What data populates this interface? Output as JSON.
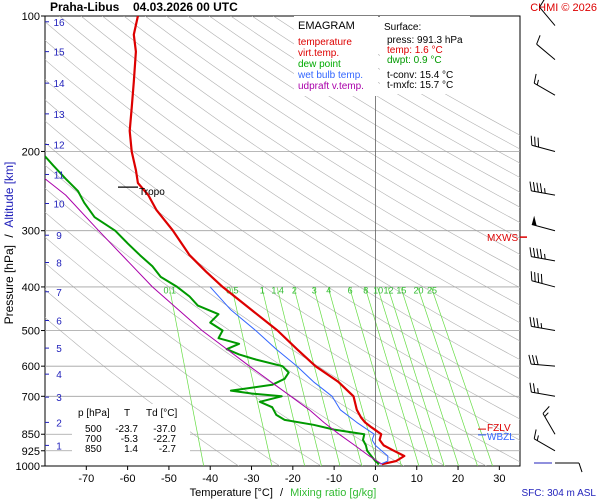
{
  "header": {
    "station": "Praha-Libus",
    "datetime": "04.03.2026 00 UTC",
    "credit": "CHMI © 2026"
  },
  "legend": {
    "title": "EMAGRAM",
    "items": [
      {
        "label": "temperature",
        "color": "#dd0000"
      },
      {
        "label": "virt.temp.",
        "color": "#dd0000"
      },
      {
        "label": "dew point",
        "color": "#00aa00"
      },
      {
        "label": "wet bulb temp.",
        "color": "#3366ff"
      },
      {
        "label": "udpraft v.temp.",
        "color": "#aa00aa"
      }
    ]
  },
  "surface_box": {
    "title": "Surface:",
    "press": "press: 991.3 hPa",
    "temp": "temp: 1.6 °C",
    "dwpt": "dwpt: 0.9 °C",
    "tconv": "t-conv: 15.4 °C",
    "tmxfc": "t-mxfc: 15.7 °C"
  },
  "table": {
    "header": [
      "p [hPa]",
      "T",
      "Td [°C]"
    ],
    "rows": [
      [
        "500",
        "-23.7",
        "-37.0"
      ],
      [
        "700",
        "-5.3",
        "-22.7"
      ],
      [
        "850",
        "1.4",
        "-2.7"
      ]
    ]
  },
  "labels": {
    "tropo": "Tropo",
    "mxws": "MXWS",
    "fzl": "FZLV",
    "wbzl": "WBZL",
    "sfc": "SFC: 304 m ASL"
  },
  "axes": {
    "ylabel_left": "Pressure [hPa]",
    "ylabel_sep": "/",
    "ylabel_right": "Altitude [km]",
    "xlabel_left": "Temperature [°C]",
    "xlabel_sep": "/",
    "xlabel_right": "Mixing ratio [g/kg]"
  },
  "colors": {
    "temperature": "#dd0000",
    "dewpoint": "#009900",
    "wetbulb": "#3366ff",
    "parcel": "#aa00aa",
    "mixing": "#66dd44",
    "adiabat": "#b0b0b0",
    "isobar": "#a0a0a0",
    "wind": "#000000",
    "axis_label_blue": "#2222bb"
  },
  "chart_data": {
    "type": "line",
    "xlim": [
      -80,
      35
    ],
    "ylim_hpa": [
      1000,
      100
    ],
    "log_pressure": true,
    "x_ticks": [
      -70,
      -60,
      -50,
      -40,
      -30,
      -20,
      -10,
      0,
      10,
      20,
      30
    ],
    "p_ticks": [
      100,
      200,
      300,
      400,
      500,
      600,
      700,
      850,
      925,
      1000
    ],
    "alt_ticks": [
      {
        "label": "1",
        "p": 900
      },
      {
        "label": "2",
        "p": 800
      },
      {
        "label": "3",
        "p": 703
      },
      {
        "label": "4",
        "p": 625
      },
      {
        "label": "5",
        "p": 547
      },
      {
        "label": "6",
        "p": 475
      },
      {
        "label": "7",
        "p": 410
      },
      {
        "label": "8",
        "p": 353
      },
      {
        "label": "9",
        "p": 307
      },
      {
        "label": "10",
        "p": 261
      },
      {
        "label": "11",
        "p": 225
      },
      {
        "label": "12",
        "p": 193
      },
      {
        "label": "13",
        "p": 165
      },
      {
        "label": "14",
        "p": 141
      },
      {
        "label": "15",
        "p": 120
      },
      {
        "label": "16",
        "p": 103
      }
    ],
    "mixing_ratio_labels": [
      "0.1",
      "0.5",
      "1",
      "1.4",
      "2",
      "3",
      "4",
      "6",
      "8",
      "10",
      "12",
      "15",
      "20",
      "25"
    ],
    "mixing_ratio_values": [
      0.1,
      0.5,
      1,
      1.4,
      2,
      3,
      4,
      6,
      8,
      10,
      12,
      15,
      20,
      25
    ],
    "mixing_label_p": 405,
    "series": [
      {
        "key": "temperature",
        "points": [
          [
            991,
            1.6
          ],
          [
            975,
            5.0
          ],
          [
            950,
            7.0
          ],
          [
            925,
            4.5
          ],
          [
            900,
            2.0
          ],
          [
            875,
            1.0
          ],
          [
            850,
            1.4
          ],
          [
            820,
            -1.0
          ],
          [
            800,
            -2.5
          ],
          [
            780,
            -3.5
          ],
          [
            750,
            -4.5
          ],
          [
            700,
            -5.3
          ],
          [
            650,
            -9.0
          ],
          [
            600,
            -14.5
          ],
          [
            550,
            -19.0
          ],
          [
            500,
            -23.7
          ],
          [
            450,
            -30.0
          ],
          [
            400,
            -37.0
          ],
          [
            370,
            -41.0
          ],
          [
            340,
            -45.0
          ],
          [
            300,
            -49.0
          ],
          [
            270,
            -53.0
          ],
          [
            250,
            -55.0
          ],
          [
            235,
            -57.5
          ],
          [
            220,
            -58.0
          ],
          [
            200,
            -59.0
          ],
          [
            180,
            -59.5
          ],
          [
            160,
            -59.0
          ],
          [
            140,
            -58.5
          ],
          [
            120,
            -58.0
          ],
          [
            110,
            -58.5
          ],
          [
            100,
            -57.5
          ]
        ]
      },
      {
        "key": "dewpoint",
        "points": [
          [
            991,
            0.9
          ],
          [
            975,
            0.0
          ],
          [
            950,
            -1.0
          ],
          [
            925,
            -2.0
          ],
          [
            900,
            -2.3
          ],
          [
            875,
            -3.0
          ],
          [
            850,
            -2.7
          ],
          [
            830,
            -10.0
          ],
          [
            810,
            -15.0
          ],
          [
            790,
            -22.0
          ],
          [
            770,
            -24.0
          ],
          [
            740,
            -25.0
          ],
          [
            720,
            -28.0
          ],
          [
            700,
            -22.7
          ],
          [
            690,
            -30.0
          ],
          [
            680,
            -35.0
          ],
          [
            660,
            -25.0
          ],
          [
            640,
            -22.0
          ],
          [
            620,
            -21.0
          ],
          [
            600,
            -22.5
          ],
          [
            580,
            -29.0
          ],
          [
            565,
            -33.0
          ],
          [
            550,
            -36.0
          ],
          [
            535,
            -33.0
          ],
          [
            520,
            -38.0
          ],
          [
            500,
            -37.0
          ],
          [
            480,
            -40.0
          ],
          [
            460,
            -38.0
          ],
          [
            440,
            -43.0
          ],
          [
            420,
            -45.0
          ],
          [
            400,
            -48.0
          ],
          [
            380,
            -52.0
          ],
          [
            360,
            -54.0
          ],
          [
            340,
            -57.0
          ],
          [
            320,
            -60.0
          ],
          [
            300,
            -63.0
          ],
          [
            280,
            -68.0
          ],
          [
            260,
            -70.5
          ],
          [
            245,
            -72.0
          ],
          [
            230,
            -75.0
          ],
          [
            215,
            -78.0
          ],
          [
            205,
            -80.0
          ]
        ]
      },
      {
        "key": "wetbulb",
        "points": [
          [
            991,
            1.2
          ],
          [
            975,
            3.0
          ],
          [
            950,
            3.0
          ],
          [
            925,
            1.5
          ],
          [
            900,
            0.0
          ],
          [
            875,
            -0.8
          ],
          [
            850,
            -0.3
          ],
          [
            800,
            -4.5
          ],
          [
            750,
            -8.5
          ],
          [
            700,
            -10.5
          ],
          [
            650,
            -15.0
          ],
          [
            600,
            -19.0
          ],
          [
            550,
            -24.0
          ],
          [
            500,
            -29.0
          ],
          [
            450,
            -35.0
          ],
          [
            400,
            -40.0
          ]
        ]
      },
      {
        "key": "parcel",
        "points": [
          [
            991,
            1.6
          ],
          [
            950,
            -1.5
          ],
          [
            900,
            -5.0
          ],
          [
            850,
            -8.8
          ],
          [
            800,
            -12.5
          ],
          [
            750,
            -16.0
          ],
          [
            700,
            -20.5
          ],
          [
            600,
            -30.5
          ],
          [
            500,
            -42.0
          ],
          [
            400,
            -54.0
          ],
          [
            300,
            -67.0
          ],
          [
            250,
            -75.0
          ],
          [
            230,
            -80.0
          ]
        ]
      }
    ],
    "isobars": [
      200,
      300,
      400,
      500,
      600,
      700,
      850,
      925
    ],
    "tropopause_p": 240,
    "mxws_p": 310,
    "fzl_p": 828,
    "wbzl_p": 853,
    "winds": [
      {
        "p": 985,
        "dir": 90,
        "spd": 10
      },
      {
        "p": 925,
        "dir": 300,
        "spd": 15
      },
      {
        "p": 850,
        "dir": 330,
        "spd": 15
      },
      {
        "p": 700,
        "dir": 280,
        "spd": 25
      },
      {
        "p": 600,
        "dir": 275,
        "spd": 30
      },
      {
        "p": 500,
        "dir": 280,
        "spd": 35
      },
      {
        "p": 400,
        "dir": 285,
        "spd": 40
      },
      {
        "p": 350,
        "dir": 280,
        "spd": 45
      },
      {
        "p": 300,
        "dir": 285,
        "spd": 50
      },
      {
        "p": 250,
        "dir": 280,
        "spd": 45
      },
      {
        "p": 200,
        "dir": 285,
        "spd": 30
      },
      {
        "p": 150,
        "dir": 300,
        "spd": 15
      },
      {
        "p": 125,
        "dir": 310,
        "spd": 10
      },
      {
        "p": 105,
        "dir": 320,
        "spd": 10
      }
    ]
  }
}
